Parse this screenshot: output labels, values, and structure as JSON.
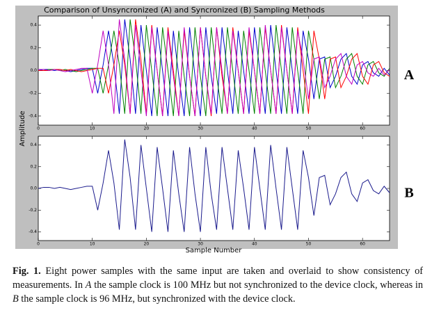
{
  "figure": {
    "title": "Comparison of Unsyncronized (A) and Syncronized (B) Sampling Methods",
    "ylabel": "Amplitude",
    "xlabel": "Sample Number"
  },
  "chart_data": [
    {
      "type": "line",
      "label": "A",
      "xlim": [
        0,
        65
      ],
      "ylim": [
        -0.48,
        0.48
      ],
      "xticks": [
        0,
        10,
        20,
        30,
        40,
        50,
        60
      ],
      "yticks": [
        -0.4,
        -0.2,
        {
          "value": 0,
          "label": "0.0"
        },
        0.2,
        0.4
      ],
      "x": [
        0,
        1,
        2,
        3,
        4,
        5,
        6,
        7,
        8,
        9,
        10,
        11,
        12,
        13,
        14,
        15,
        16,
        17,
        18,
        19,
        20,
        21,
        22,
        23,
        24,
        25,
        26,
        27,
        28,
        29,
        30,
        31,
        32,
        33,
        34,
        35,
        36,
        37,
        38,
        39,
        40,
        41,
        42,
        43,
        44,
        45,
        46,
        47,
        48,
        49,
        50,
        51,
        52,
        53,
        54,
        55,
        56,
        57,
        58,
        59,
        60,
        61,
        62,
        63,
        64,
        65
      ],
      "series": [
        {
          "color": "#0000cc",
          "values": [
            0,
            0.01,
            0.01,
            0,
            0.01,
            0,
            -0.01,
            0,
            0.01,
            0.02,
            0.02,
            -0.2,
            0.05,
            0.35,
            0.05,
            -0.38,
            0.45,
            0.1,
            -0.38,
            0.4,
            0,
            -0.4,
            0.38,
            0,
            -0.4,
            0.35,
            -0.05,
            -0.4,
            0.38,
            -0.05,
            -0.4,
            0.38,
            -0.05,
            -0.38,
            0.38,
            0,
            -0.38,
            0.35,
            0,
            -0.38,
            0.38,
            0,
            -0.38,
            0.4,
            0,
            -0.38,
            0.38,
            0,
            -0.38,
            0.35,
            0.1,
            -0.25,
            0.1,
            0.12,
            -0.15,
            -0.05,
            0.1,
            0.15,
            -0.05,
            -0.12,
            0.05,
            0.08,
            -0.02,
            -0.05,
            0.02,
            -0.04
          ]
        },
        {
          "color": "#008000",
          "values": [
            0,
            0,
            0.01,
            0.01,
            0,
            0.01,
            0,
            -0.01,
            0,
            0.01,
            0.02,
            0.02,
            -0.2,
            0.05,
            0.35,
            0.05,
            -0.38,
            0.45,
            0.1,
            -0.38,
            0.4,
            0,
            -0.4,
            0.38,
            0,
            -0.4,
            0.35,
            -0.05,
            -0.4,
            0.38,
            -0.05,
            -0.4,
            0.38,
            -0.05,
            -0.38,
            0.38,
            0,
            -0.38,
            0.35,
            0,
            -0.38,
            0.38,
            0,
            -0.38,
            0.4,
            0,
            -0.38,
            0.38,
            0,
            -0.38,
            0.35,
            0.1,
            -0.25,
            0.1,
            0.12,
            -0.15,
            -0.05,
            0.1,
            0.15,
            -0.05,
            -0.12,
            0.05,
            0.08,
            -0.02,
            -0.05,
            0.02
          ]
        },
        {
          "color": "#ff0000",
          "values": [
            0,
            0,
            0,
            0.01,
            0.01,
            0,
            0.01,
            0,
            -0.01,
            0,
            0.01,
            0.02,
            0.02,
            -0.2,
            0.05,
            0.35,
            0.05,
            -0.38,
            0.45,
            0.1,
            -0.38,
            0.4,
            0,
            -0.4,
            0.38,
            0,
            -0.4,
            0.35,
            -0.05,
            -0.4,
            0.38,
            -0.05,
            -0.4,
            0.38,
            -0.05,
            -0.38,
            0.38,
            0,
            -0.38,
            0.35,
            0,
            -0.38,
            0.38,
            0,
            -0.38,
            0.4,
            0,
            -0.38,
            0.38,
            0,
            -0.38,
            0.35,
            0.1,
            -0.25,
            0.1,
            0.12,
            -0.15,
            -0.05,
            0.1,
            0.15,
            -0.05,
            -0.12,
            0.05,
            0.08,
            -0.02,
            -0.05
          ]
        },
        {
          "color": "#bf00bf",
          "values": [
            0.01,
            0.01,
            0,
            0.01,
            0,
            -0.01,
            0,
            0.01,
            0.02,
            0.02,
            -0.2,
            0.05,
            0.35,
            0.05,
            -0.38,
            0.45,
            0.1,
            -0.38,
            0.4,
            0,
            -0.4,
            0.38,
            0,
            -0.4,
            0.35,
            -0.05,
            -0.4,
            0.38,
            -0.05,
            -0.4,
            0.38,
            -0.05,
            -0.38,
            0.38,
            0,
            -0.38,
            0.35,
            0,
            -0.38,
            0.38,
            0,
            -0.38,
            0.4,
            0,
            -0.38,
            0.38,
            0,
            -0.38,
            0.35,
            0.1,
            -0.25,
            0.1,
            0.12,
            -0.15,
            -0.05,
            0.1,
            0.15,
            -0.05,
            -0.12,
            0.05,
            0.08,
            -0.02,
            -0.05,
            0.02,
            -0.04,
            0.01
          ]
        }
      ]
    },
    {
      "type": "line",
      "label": "B",
      "xlim": [
        0,
        65
      ],
      "ylim": [
        -0.48,
        0.48
      ],
      "xticks": [
        0,
        10,
        20,
        30,
        40,
        50,
        60
      ],
      "yticks": [
        -0.4,
        -0.2,
        {
          "value": 0,
          "label": "0.0"
        },
        0.2,
        0.4
      ],
      "x": [
        0,
        1,
        2,
        3,
        4,
        5,
        6,
        7,
        8,
        9,
        10,
        11,
        12,
        13,
        14,
        15,
        16,
        17,
        18,
        19,
        20,
        21,
        22,
        23,
        24,
        25,
        26,
        27,
        28,
        29,
        30,
        31,
        32,
        33,
        34,
        35,
        36,
        37,
        38,
        39,
        40,
        41,
        42,
        43,
        44,
        45,
        46,
        47,
        48,
        49,
        50,
        51,
        52,
        53,
        54,
        55,
        56,
        57,
        58,
        59,
        60,
        61,
        62,
        63,
        64,
        65
      ],
      "series": [
        {
          "color": "#1a1a8c",
          "values": [
            0,
            0.01,
            0.01,
            0,
            0.01,
            0,
            -0.01,
            0,
            0.01,
            0.02,
            0.02,
            -0.2,
            0.05,
            0.35,
            0.05,
            -0.38,
            0.45,
            0.1,
            -0.38,
            0.4,
            0,
            -0.4,
            0.38,
            0,
            -0.4,
            0.35,
            -0.05,
            -0.4,
            0.38,
            -0.05,
            -0.4,
            0.38,
            -0.05,
            -0.38,
            0.38,
            0,
            -0.38,
            0.35,
            0,
            -0.38,
            0.38,
            0,
            -0.38,
            0.4,
            0,
            -0.38,
            0.38,
            0,
            -0.38,
            0.35,
            0.1,
            -0.25,
            0.1,
            0.12,
            -0.15,
            -0.05,
            0.1,
            0.15,
            -0.05,
            -0.12,
            0.05,
            0.08,
            -0.02,
            -0.05,
            0.02,
            -0.04
          ]
        }
      ]
    }
  ],
  "caption": {
    "label": "Fig. 1.",
    "parts": [
      "Eight power samples with the same input are taken and overlaid to show consistency of measurements. In ",
      "A",
      " the sample clock is 100 MHz but not synchronized to the device clock, whereas in ",
      "B",
      " the sample clock is 96 MHz, but synchronized with the device clock."
    ]
  }
}
